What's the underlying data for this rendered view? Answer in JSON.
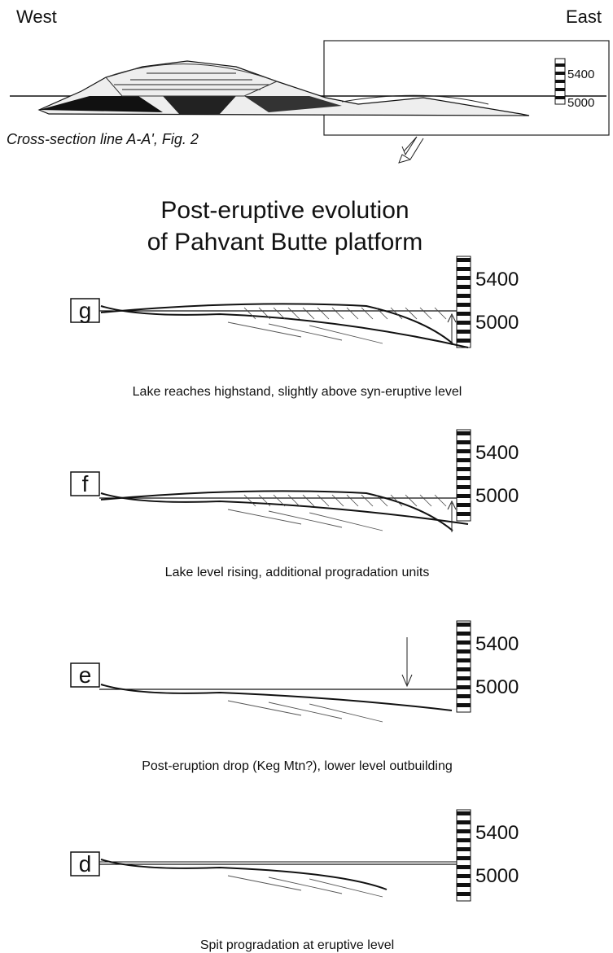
{
  "header": {
    "west": "West",
    "east": "East",
    "scale": {
      "upper": "5400",
      "lower": "5000"
    },
    "caption": "Cross-section line A-A', Fig. 2"
  },
  "title": {
    "line1": "Post-eruptive evolution",
    "line2": "of Pahvant Butte platform"
  },
  "panels": [
    {
      "label": "g",
      "scale_upper": "5400",
      "scale_lower": "5000",
      "caption": "Lake reaches highstand, slightly above syn-eruptive level"
    },
    {
      "label": "f",
      "scale_upper": "5400",
      "scale_lower": "5000",
      "caption": "Lake level rising, additional progradation units"
    },
    {
      "label": "e",
      "scale_upper": "5400",
      "scale_lower": "5000",
      "caption": "Post-eruption drop (Keg Mtn?), lower level outbuilding"
    },
    {
      "label": "d",
      "scale_upper": "5400",
      "scale_lower": "5000",
      "caption": "Spit progradation at eruptive level"
    }
  ]
}
